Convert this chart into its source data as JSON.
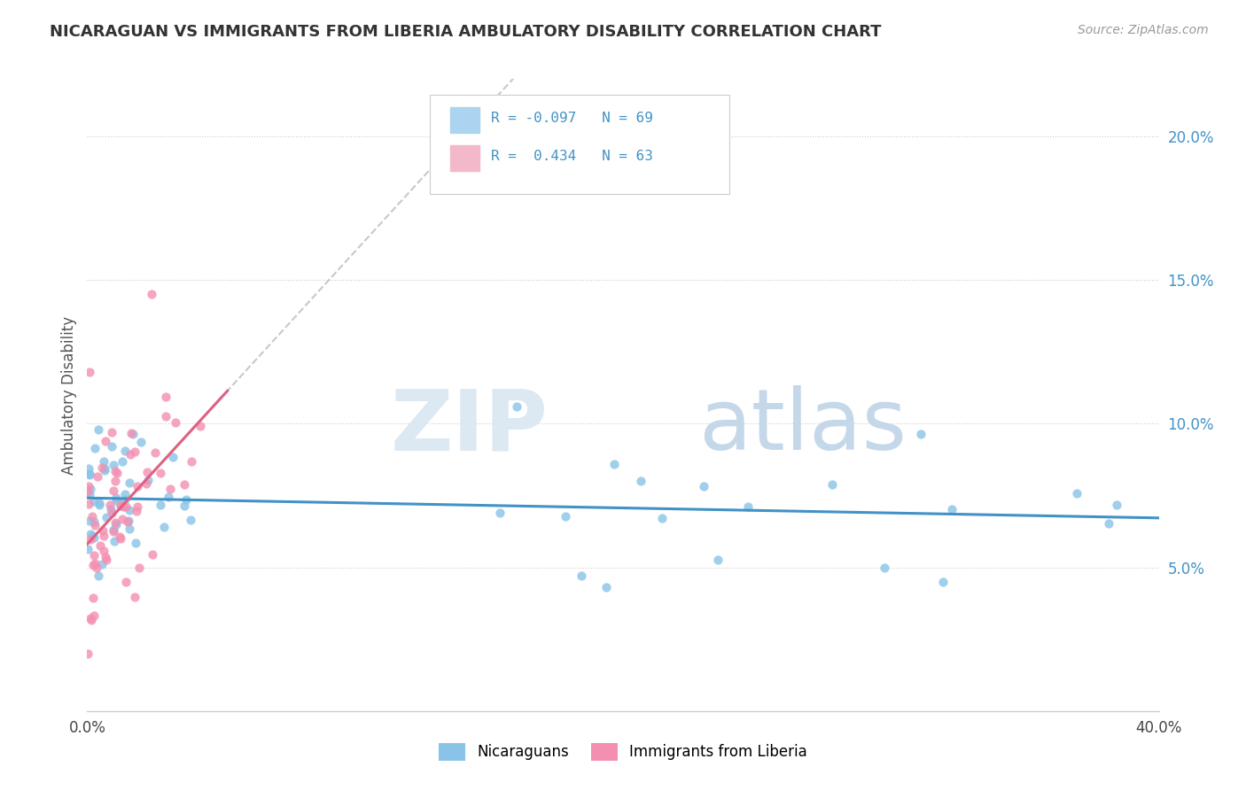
{
  "title": "NICARAGUAN VS IMMIGRANTS FROM LIBERIA AMBULATORY DISABILITY CORRELATION CHART",
  "source": "Source: ZipAtlas.com",
  "ylabel": "Ambulatory Disability",
  "xlim": [
    0.0,
    0.4
  ],
  "ylim": [
    0.0,
    0.22
  ],
  "xtick_vals": [
    0.0,
    0.4
  ],
  "xtick_labels": [
    "0.0%",
    "40.0%"
  ],
  "ytick_vals": [
    0.05,
    0.1,
    0.15,
    0.2
  ],
  "ytick_labels": [
    "5.0%",
    "10.0%",
    "15.0%",
    "20.0%"
  ],
  "legend_r1": "R = -0.097",
  "legend_n1": "N = 69",
  "legend_r2": "R =  0.434",
  "legend_n2": "N = 63",
  "color_nic_scatter": "#89c4e8",
  "color_lib_scatter": "#f48fb1",
  "color_nic_trend": "#4292c6",
  "color_lib_trend": "#e06080",
  "color_legend_sq1": "#aad4f0",
  "color_legend_sq2": "#f4b8cb",
  "color_ytick": "#4292c6",
  "color_title": "#333333",
  "color_source": "#999999",
  "watermark_text1": "ZIP",
  "watermark_text2": "atlas",
  "watermark_color1": "#dce8f2",
  "watermark_color2": "#c5d8ea",
  "label_nicaraguans": "Nicaraguans",
  "label_liberia": "Immigrants from Liberia",
  "seed": 42,
  "n_nic": 69,
  "n_lib": 63
}
